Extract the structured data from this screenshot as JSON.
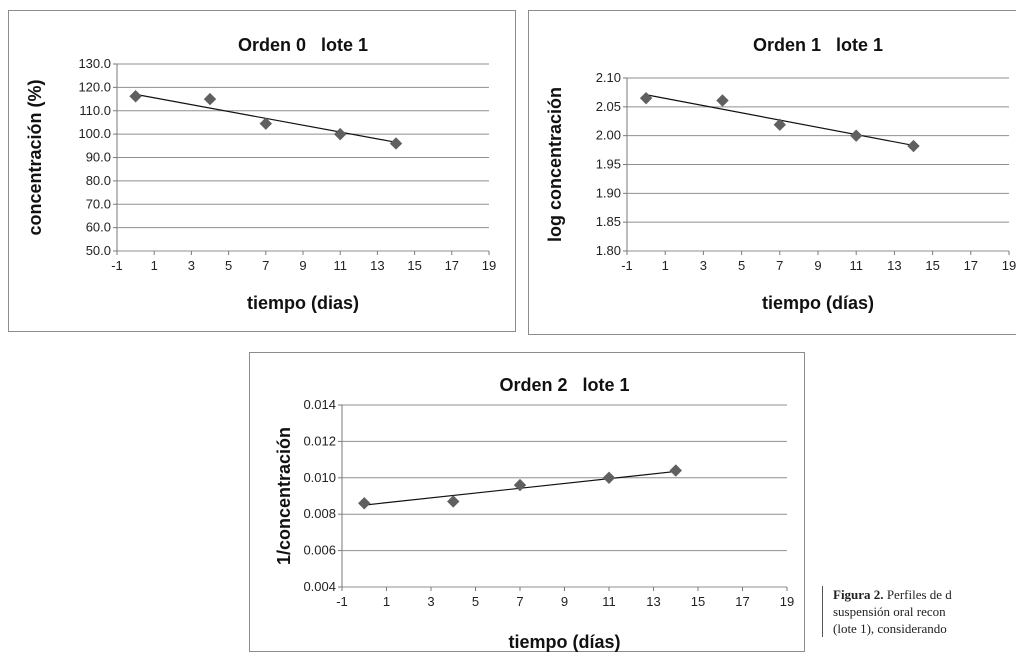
{
  "chart_data": [
    {
      "type": "scatter",
      "title": "Orden 0   lote 1",
      "xlabel": "tiempo (dias)",
      "ylabel": "concentración (%)",
      "xlim": [
        -1,
        19
      ],
      "ylim": [
        50,
        130
      ],
      "x_ticks": [
        "-1",
        "1",
        "3",
        "5",
        "7",
        "9",
        "11",
        "13",
        "15",
        "17",
        "19"
      ],
      "y_ticks": [
        "50.0",
        "60.0",
        "70.0",
        "80.0",
        "90.0",
        "100.0",
        "110.0",
        "120.0",
        "130.0"
      ],
      "grid": true,
      "x": [
        0,
        4,
        7,
        11,
        14
      ],
      "y": [
        116.2,
        115.0,
        104.5,
        100.0,
        96.0
      ],
      "trendline": {
        "x": [
          0,
          14
        ],
        "y": [
          117.0,
          96.5
        ]
      },
      "marker_color": "#606060"
    },
    {
      "type": "scatter",
      "title": "Orden 1   lote 1",
      "xlabel": "tiempo (días)",
      "ylabel": "log concentración",
      "xlim": [
        -1,
        19
      ],
      "ylim": [
        1.8,
        2.1
      ],
      "x_ticks": [
        "-1",
        "1",
        "3",
        "5",
        "7",
        "9",
        "11",
        "13",
        "15",
        "17",
        "19"
      ],
      "y_ticks": [
        "1.80",
        "1.85",
        "1.90",
        "1.95",
        "2.00",
        "2.05",
        "2.10"
      ],
      "grid": true,
      "x": [
        0,
        4,
        7,
        11,
        14
      ],
      "y": [
        2.065,
        2.061,
        2.019,
        2.0,
        1.982
      ],
      "trendline": {
        "x": [
          0,
          14
        ],
        "y": [
          2.071,
          1.983
        ]
      },
      "marker_color": "#606060"
    },
    {
      "type": "scatter",
      "title": "Orden 2   lote 1",
      "xlabel": "tiempo (días)",
      "ylabel": "1/concentración",
      "xlim": [
        -1,
        19
      ],
      "ylim": [
        0.004,
        0.014
      ],
      "x_ticks": [
        "-1",
        "1",
        "3",
        "5",
        "7",
        "9",
        "11",
        "13",
        "15",
        "17",
        "19"
      ],
      "y_ticks": [
        "0.004",
        "0.006",
        "0.008",
        "0.010",
        "0.012",
        "0.014"
      ],
      "grid": true,
      "x": [
        0,
        4,
        7,
        11,
        14
      ],
      "y": [
        0.0086,
        0.0087,
        0.0096,
        0.01,
        0.0104
      ],
      "trendline": {
        "x": [
          0,
          14
        ],
        "y": [
          0.0085,
          0.01035
        ]
      },
      "marker_color": "#606060"
    }
  ],
  "caption": {
    "label": "Figura 2.",
    "lines": [
      " Perfiles de d",
      "suspensión oral recon",
      "(lote 1), considerando"
    ]
  }
}
